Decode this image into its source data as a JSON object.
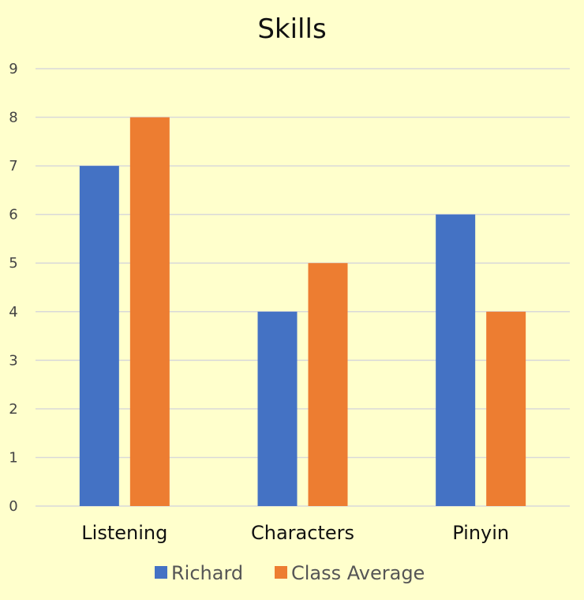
{
  "chart_data": {
    "type": "bar",
    "title": "Skills",
    "xlabel": "",
    "ylabel": "",
    "categories": [
      "Listening",
      "Characters",
      "Pinyin"
    ],
    "series": [
      {
        "name": "Richard",
        "values": [
          7,
          4,
          6
        ],
        "color": "#4472C4"
      },
      {
        "name": "Class Average",
        "values": [
          8,
          5,
          4
        ],
        "color": "#ED7D31"
      }
    ],
    "ylim": [
      0,
      9
    ],
    "yticks": [
      "0",
      "1",
      "2",
      "3",
      "4",
      "5",
      "6",
      "7",
      "8",
      "9"
    ],
    "grid": true,
    "legend_position": "bottom"
  },
  "colors": {
    "background": "#FFFFCC",
    "gridline": "#D9D9D9"
  }
}
